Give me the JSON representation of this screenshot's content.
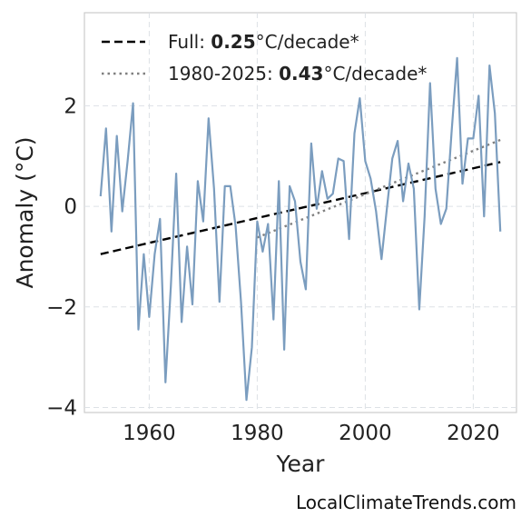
{
  "chart_data": {
    "type": "line",
    "xlabel": "Year",
    "ylabel": "Anomaly (°C)",
    "xlim": [
      1948,
      2028
    ],
    "ylim": [
      -4.1,
      3.85
    ],
    "xticks": [
      1960,
      1980,
      2000,
      2020
    ],
    "yticks": [
      -4,
      -2,
      0,
      2
    ],
    "ytick_labels": [
      "−4",
      "−2",
      "0",
      "2"
    ],
    "grid": true,
    "legend_position": "top-left",
    "series": [
      {
        "color": "#7b9dbf",
        "x": [
          1951,
          1952,
          1953,
          1954,
          1955,
          1956,
          1957,
          1958,
          1959,
          1960,
          1961,
          1962,
          1963,
          1964,
          1965,
          1966,
          1967,
          1968,
          1969,
          1970,
          1971,
          1972,
          1973,
          1974,
          1975,
          1976,
          1977,
          1978,
          1979,
          1980,
          1981,
          1982,
          1983,
          1984,
          1985,
          1986,
          1987,
          1988,
          1989,
          1990,
          1991,
          1992,
          1993,
          1994,
          1995,
          1996,
          1997,
          1998,
          1999,
          2000,
          2001,
          2002,
          2003,
          2004,
          2005,
          2006,
          2007,
          2008,
          2009,
          2010,
          2011,
          2012,
          2013,
          2014,
          2015,
          2016,
          2017,
          2018,
          2019,
          2020,
          2021,
          2022,
          2023,
          2024,
          2025
        ],
        "y": [
          0.2,
          1.55,
          -0.5,
          1.4,
          -0.1,
          0.9,
          2.05,
          -2.45,
          -0.95,
          -2.2,
          -0.95,
          -0.25,
          -3.5,
          -1.6,
          0.65,
          -2.3,
          -0.8,
          -1.95,
          0.5,
          -0.3,
          1.75,
          0.35,
          -1.9,
          0.4,
          0.4,
          -0.4,
          -1.9,
          -3.85,
          -2.8,
          -0.3,
          -0.9,
          -0.35,
          -2.25,
          0.5,
          -2.85,
          0.4,
          0.1,
          -1.1,
          -1.65,
          1.25,
          -0.05,
          0.7,
          0.15,
          0.25,
          0.95,
          0.9,
          -0.65,
          1.45,
          2.15,
          0.9,
          0.55,
          -0.1,
          -1.05,
          -0.05,
          0.95,
          1.3,
          0.1,
          0.85,
          0.35,
          -2.05,
          -0.2,
          2.45,
          0.35,
          -0.35,
          -0.05,
          1.5,
          2.95,
          0.45,
          1.35,
          1.35,
          2.2,
          -0.2,
          2.8,
          1.85,
          -0.5
        ]
      }
    ],
    "trends": [
      {
        "label_prefix": "Full: ",
        "rate": "0.25",
        "label_suffix": "°C/decade*",
        "style": "dashed",
        "color": "#000000",
        "x": [
          1951,
          2025
        ],
        "y": [
          -0.95,
          0.88
        ]
      },
      {
        "label_prefix": "1980-2025: ",
        "rate": "0.43",
        "label_suffix": "°C/decade*",
        "style": "dotted",
        "color": "#808080",
        "x": [
          1980,
          2025
        ],
        "y": [
          -0.62,
          1.32
        ]
      }
    ]
  },
  "credit": "LocalClimateTrends.com"
}
